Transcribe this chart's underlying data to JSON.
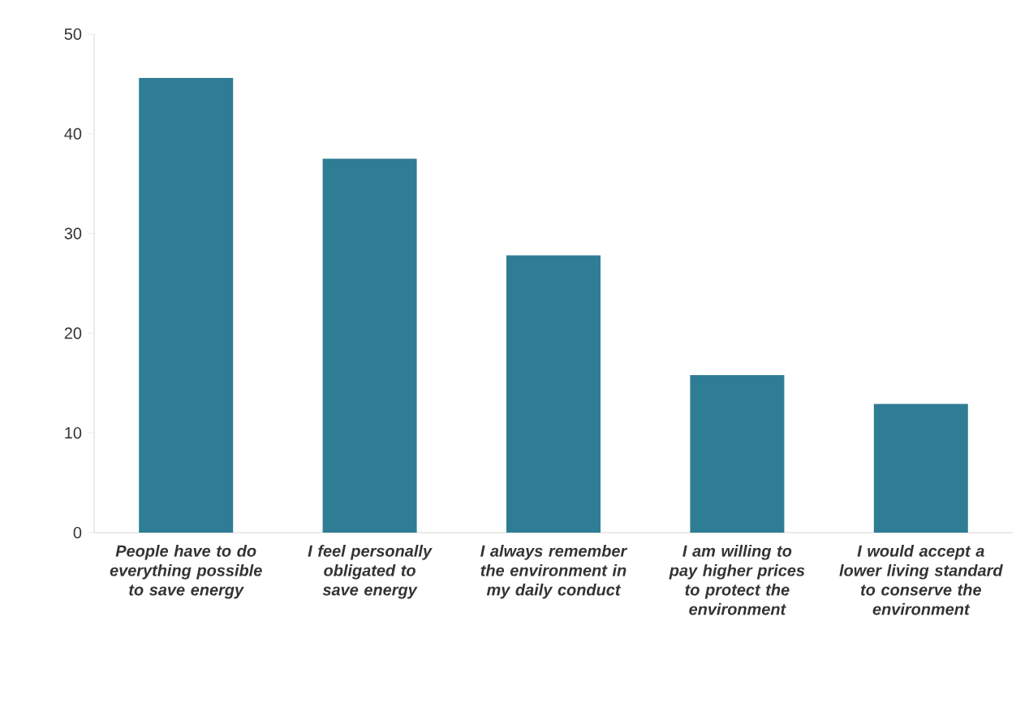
{
  "chart_data": {
    "type": "bar",
    "categories": [
      "People have to do everything possible to save energy",
      "I feel personally obligated to save energy",
      "I always remember the environment in my daily conduct",
      "I am willing to pay higher prices to protect the environment",
      "I would accept a lower living standard to conserve the environment"
    ],
    "values": [
      45.6,
      37.5,
      27.8,
      15.8,
      12.9
    ],
    "color": "#2e7d95",
    "ylim": [
      0,
      50
    ],
    "yticks": [
      0,
      10,
      20,
      30,
      40,
      50
    ],
    "grid": false
  }
}
